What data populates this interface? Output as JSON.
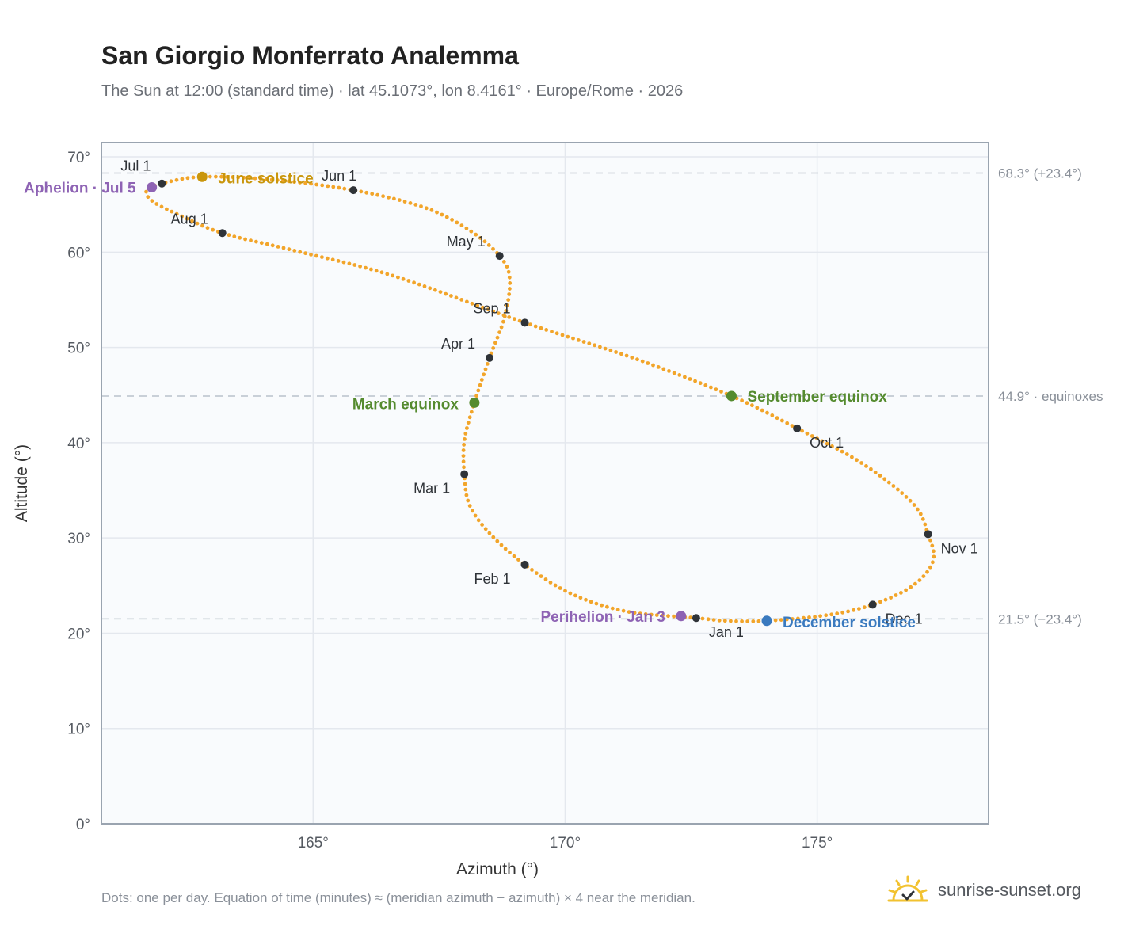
{
  "title": "San Giorgio Monferrato Analemma",
  "subtitle": "The Sun at 12:00 (standard time) · lat 45.1073°, lon 8.4161° · Europe/Rome · 2026",
  "footnote": "Dots: one per day. Equation of time (minutes) ≈ (meridian azimuth − azimuth) × 4 near the meridian.",
  "brand": {
    "name": "sunrise-sunset.org",
    "icon": "sun-check-icon"
  },
  "colors": {
    "curve": "#f2a52a",
    "month_marker": "#2f3338",
    "solstice_june": "#c9960c",
    "solstice_december": "#3a7abf",
    "equinox": "#558b2f",
    "apsis": "#8e63b4",
    "reference_line": "#b9c2cc",
    "plot_bg": "#f9fbfd",
    "grid": "#e4e8ee",
    "frame": "#9aa4b0"
  },
  "chart_data": {
    "type": "scatter",
    "xlabel": "Azimuth (°)",
    "ylabel": "Altitude (°)",
    "xlim": [
      160.8,
      178.4
    ],
    "ylim": [
      0,
      71.5
    ],
    "x_ticks": [
      {
        "value": 165,
        "label": "165°"
      },
      {
        "value": 170,
        "label": "170°"
      },
      {
        "value": 175,
        "label": "175°"
      }
    ],
    "y_ticks": [
      {
        "value": 0,
        "label": "0°"
      },
      {
        "value": 10,
        "label": "10°"
      },
      {
        "value": 20,
        "label": "20°"
      },
      {
        "value": 30,
        "label": "30°"
      },
      {
        "value": 40,
        "label": "40°"
      },
      {
        "value": 50,
        "label": "50°"
      },
      {
        "value": 60,
        "label": "60°"
      },
      {
        "value": 70,
        "label": "70°"
      }
    ],
    "grid": true,
    "reference_lines": [
      {
        "y": 68.3,
        "label": "68.3° (+23.4°)"
      },
      {
        "y": 44.9,
        "label": "44.9° · equinoxes"
      },
      {
        "y": 21.5,
        "label": "21.5° (−23.4°)"
      }
    ],
    "month_markers": [
      {
        "label": "Jan 1",
        "x": 172.6,
        "y": 21.6
      },
      {
        "label": "Feb 1",
        "x": 169.2,
        "y": 27.2
      },
      {
        "label": "Mar 1",
        "x": 168.0,
        "y": 36.7
      },
      {
        "label": "Apr 1",
        "x": 168.5,
        "y": 48.9
      },
      {
        "label": "May 1",
        "x": 168.7,
        "y": 59.6
      },
      {
        "label": "Jun 1",
        "x": 165.8,
        "y": 66.5
      },
      {
        "label": "Jul 1",
        "x": 162.0,
        "y": 67.2
      },
      {
        "label": "Aug 1",
        "x": 163.2,
        "y": 62.0
      },
      {
        "label": "Sep 1",
        "x": 169.2,
        "y": 52.6
      },
      {
        "label": "Oct 1",
        "x": 174.6,
        "y": 41.5
      },
      {
        "label": "Nov 1",
        "x": 177.2,
        "y": 30.4
      },
      {
        "label": "Dec 1",
        "x": 176.1,
        "y": 23.0
      }
    ],
    "events": [
      {
        "label": "June solstice",
        "x": 162.8,
        "y": 67.9,
        "kind": "solstice_june"
      },
      {
        "label": "December solstice",
        "x": 174.0,
        "y": 21.3,
        "kind": "solstice_december"
      },
      {
        "label": "March equinox",
        "x": 168.2,
        "y": 44.2,
        "kind": "equinox"
      },
      {
        "label": "September equinox",
        "x": 173.3,
        "y": 44.9,
        "kind": "equinox"
      },
      {
        "label": "Aphelion · Jul 5",
        "x": 161.8,
        "y": 66.8,
        "kind": "apsis"
      },
      {
        "label": "Perihelion · Jan 3",
        "x": 172.3,
        "y": 21.8,
        "kind": "apsis"
      }
    ],
    "curve_path": [
      {
        "x": 172.6,
        "y": 21.6
      },
      {
        "x": 171.2,
        "y": 22.3
      },
      {
        "x": 170.1,
        "y": 24.2
      },
      {
        "x": 169.2,
        "y": 27.2
      },
      {
        "x": 168.5,
        "y": 30.5
      },
      {
        "x": 168.1,
        "y": 33.5
      },
      {
        "x": 168.0,
        "y": 36.7
      },
      {
        "x": 168.0,
        "y": 40.2
      },
      {
        "x": 168.2,
        "y": 44.2
      },
      {
        "x": 168.5,
        "y": 48.9
      },
      {
        "x": 168.8,
        "y": 53.2
      },
      {
        "x": 168.9,
        "y": 57.2
      },
      {
        "x": 168.7,
        "y": 59.6
      },
      {
        "x": 168.1,
        "y": 62.3
      },
      {
        "x": 167.2,
        "y": 64.7
      },
      {
        "x": 165.8,
        "y": 66.5
      },
      {
        "x": 164.2,
        "y": 67.6
      },
      {
        "x": 162.8,
        "y": 67.9
      },
      {
        "x": 162.0,
        "y": 67.2
      },
      {
        "x": 161.7,
        "y": 66.5
      },
      {
        "x": 161.8,
        "y": 65.4
      },
      {
        "x": 162.3,
        "y": 64.0
      },
      {
        "x": 163.2,
        "y": 62.0
      },
      {
        "x": 164.6,
        "y": 60.2
      },
      {
        "x": 166.6,
        "y": 57.5
      },
      {
        "x": 169.2,
        "y": 52.6
      },
      {
        "x": 171.4,
        "y": 48.8
      },
      {
        "x": 173.3,
        "y": 44.9
      },
      {
        "x": 174.6,
        "y": 41.5
      },
      {
        "x": 175.9,
        "y": 37.8
      },
      {
        "x": 176.9,
        "y": 33.6
      },
      {
        "x": 177.2,
        "y": 30.4
      },
      {
        "x": 177.3,
        "y": 27.6
      },
      {
        "x": 176.9,
        "y": 25.0
      },
      {
        "x": 176.1,
        "y": 23.0
      },
      {
        "x": 175.2,
        "y": 21.9
      },
      {
        "x": 174.0,
        "y": 21.3
      },
      {
        "x": 173.2,
        "y": 21.3
      },
      {
        "x": 172.6,
        "y": 21.6
      }
    ]
  }
}
